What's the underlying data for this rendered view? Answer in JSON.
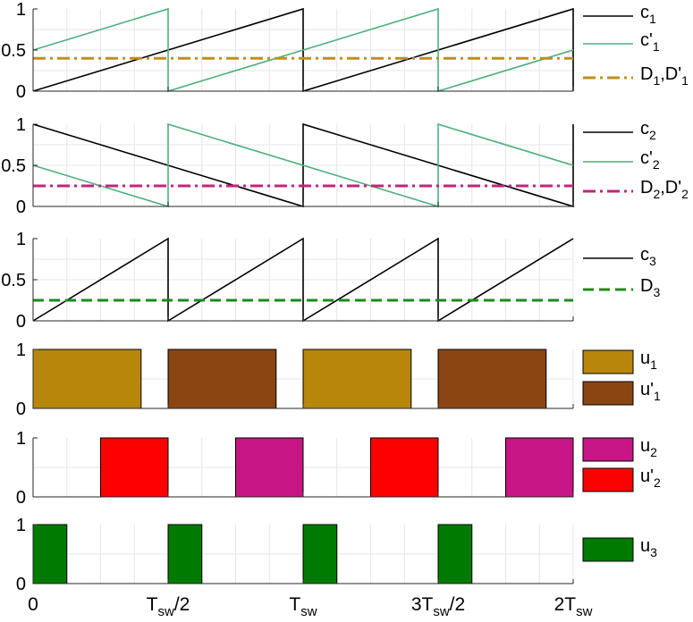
{
  "chart_data": [
    {
      "type": "line",
      "panel": 1,
      "x": [
        0,
        0.5,
        0.5,
        1,
        1,
        1.5,
        1.5,
        2
      ],
      "xlim": [
        0,
        2
      ],
      "ylim": [
        0,
        1
      ],
      "yticks": [
        "0",
        "0.5",
        "1"
      ],
      "grid": true,
      "legend_position": "right",
      "series": [
        {
          "legend": [
            "c",
            "1",
            ""
          ],
          "style": "solid",
          "color": "#000000",
          "points": [
            [
              0,
              0
            ],
            [
              1,
              1
            ],
            [
              1,
              0
            ],
            [
              2,
              1
            ],
            [
              2,
              0
            ]
          ]
        },
        {
          "legend": [
            "c'",
            "1",
            ""
          ],
          "style": "solid",
          "color": "#4daf7c",
          "points": [
            [
              0,
              0.5
            ],
            [
              0.5,
              1
            ],
            [
              0.5,
              0
            ],
            [
              1.5,
              1
            ],
            [
              1.5,
              0
            ],
            [
              2,
              0.5
            ]
          ]
        },
        {
          "legend": [
            "D",
            "1",
            ",D'",
            "1"
          ],
          "style": "dash-dot",
          "color": "#c08f1b",
          "points": [
            [
              0,
              0.4
            ],
            [
              2,
              0.4
            ]
          ]
        }
      ]
    },
    {
      "type": "line",
      "panel": 2,
      "xlim": [
        0,
        2
      ],
      "ylim": [
        0,
        1
      ],
      "yticks": [
        "0",
        "0.5",
        "1"
      ],
      "grid": true,
      "legend_position": "right",
      "series": [
        {
          "legend": [
            "c",
            "2",
            ""
          ],
          "style": "solid",
          "color": "#000000",
          "points": [
            [
              0,
              1
            ],
            [
              1,
              0
            ],
            [
              1,
              1
            ],
            [
              2,
              0
            ],
            [
              2,
              1
            ]
          ]
        },
        {
          "legend": [
            "c'",
            "2",
            ""
          ],
          "style": "solid",
          "color": "#4daf7c",
          "points": [
            [
              0,
              0.5
            ],
            [
              0.5,
              0
            ],
            [
              0.5,
              1
            ],
            [
              1.5,
              0
            ],
            [
              1.5,
              1
            ],
            [
              2,
              0.5
            ]
          ]
        },
        {
          "legend": [
            "D",
            "2",
            ",D'",
            "2"
          ],
          "style": "dash-dot",
          "color": "#c0267a",
          "points": [
            [
              0,
              0.25
            ],
            [
              2,
              0.25
            ]
          ]
        }
      ]
    },
    {
      "type": "line",
      "panel": 3,
      "xlim": [
        0,
        2
      ],
      "ylim": [
        0,
        1
      ],
      "yticks": [
        "0",
        "0.5",
        "1"
      ],
      "grid": true,
      "legend_position": "right",
      "series": [
        {
          "legend": [
            "c",
            "3",
            ""
          ],
          "style": "solid",
          "color": "#000000",
          "points": [
            [
              0,
              0
            ],
            [
              0.5,
              1
            ],
            [
              0.5,
              0
            ],
            [
              1,
              1
            ],
            [
              1,
              0
            ],
            [
              1.5,
              1
            ],
            [
              1.5,
              0
            ],
            [
              2,
              1
            ]
          ]
        },
        {
          "legend": [
            "D",
            "3",
            ""
          ],
          "style": "dashed",
          "color": "#1e8a1e",
          "points": [
            [
              0,
              0.25
            ],
            [
              2,
              0.25
            ]
          ]
        }
      ]
    },
    {
      "type": "area",
      "panel": 4,
      "xlim": [
        0,
        2
      ],
      "ylim": [
        0,
        1
      ],
      "yticks": [
        "0",
        "1"
      ],
      "grid": true,
      "legend_position": "right",
      "series": [
        {
          "legend": [
            "u",
            "1",
            ""
          ],
          "color": "#b8860b",
          "pulses": [
            [
              0,
              0.4
            ],
            [
              1,
              1.4
            ]
          ]
        },
        {
          "legend": [
            "u'",
            "1",
            ""
          ],
          "color": "#8b4513",
          "pulses": [
            [
              0.5,
              0.9
            ],
            [
              1.5,
              1.9
            ]
          ]
        }
      ]
    },
    {
      "type": "area",
      "panel": 5,
      "xlim": [
        0,
        2
      ],
      "ylim": [
        0,
        1
      ],
      "yticks": [
        "0",
        "1"
      ],
      "grid": true,
      "legend_position": "right",
      "series": [
        {
          "legend": [
            "u",
            "2",
            ""
          ],
          "color": "#c71585",
          "pulses": [
            [
              0.75,
              1.0
            ],
            [
              1.75,
              2.0
            ]
          ]
        },
        {
          "legend": [
            "u'",
            "2",
            ""
          ],
          "color": "#ff0000",
          "pulses": [
            [
              0.25,
              0.5
            ],
            [
              1.25,
              1.5
            ]
          ]
        }
      ]
    },
    {
      "type": "area",
      "panel": 6,
      "xlim": [
        0,
        2
      ],
      "ylim": [
        0,
        1
      ],
      "yticks": [
        "0",
        "1"
      ],
      "grid": true,
      "legend_position": "right",
      "series": [
        {
          "legend": [
            "u",
            "3",
            ""
          ],
          "color": "#007a00",
          "pulses": [
            [
              0,
              0.125
            ],
            [
              0.5,
              0.625
            ],
            [
              1,
              1.125
            ],
            [
              1.5,
              1.625
            ]
          ]
        }
      ]
    }
  ],
  "x_axis": {
    "ticks": [
      {
        "value": 0,
        "parts": [
          "0",
          "",
          ""
        ]
      },
      {
        "value": 0.5,
        "parts": [
          "T",
          "sw",
          "/2"
        ]
      },
      {
        "value": 1,
        "parts": [
          "T",
          "sw",
          ""
        ]
      },
      {
        "value": 1.5,
        "parts": [
          "3T",
          "sw",
          "/2"
        ]
      },
      {
        "value": 2,
        "parts": [
          "2T",
          "sw",
          ""
        ]
      }
    ]
  }
}
